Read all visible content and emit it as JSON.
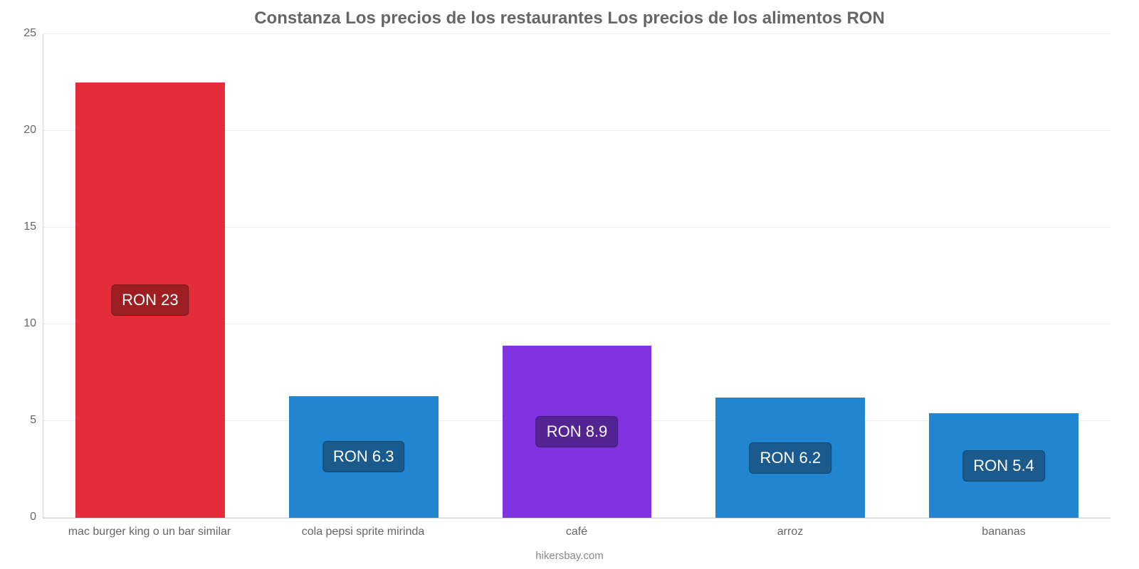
{
  "chart": {
    "type": "bar",
    "title": "Constanza Los precios de los restaurantes Los precios de los alimentos RON",
    "title_fontsize": 24,
    "title_color": "#666666",
    "ylim_min": 0,
    "ylim_max": 25,
    "ytick_step": 5,
    "yticks": [
      {
        "v": 0,
        "label": "0"
      },
      {
        "v": 5,
        "label": "5"
      },
      {
        "v": 10,
        "label": "10"
      },
      {
        "v": 15,
        "label": "15"
      },
      {
        "v": 20,
        "label": "20"
      },
      {
        "v": 25,
        "label": "25"
      }
    ],
    "label_fontsize": 16,
    "axis_color": "#d0d0d0",
    "grid_color": "#eeeeee",
    "background_color": "#ffffff",
    "bar_width": 0.7,
    "categories": [
      "mac burger king o un bar similar",
      "cola pepsi sprite mirinda",
      "café",
      "arroz",
      "bananas"
    ],
    "values": [
      22.5,
      6.3,
      8.9,
      6.2,
      5.4
    ],
    "value_labels": [
      "RON 23",
      "RON 6.3",
      "RON 8.9",
      "RON 6.2",
      "RON 5.4"
    ],
    "bar_colors": [
      "#e52d39",
      "#2185d0",
      "#8033e0",
      "#2185d0",
      "#2185d0"
    ],
    "badge_colors": [
      "#9d1f22",
      "#1a5a8c",
      "#552494",
      "#1a5a8c",
      "#1a5a8c"
    ],
    "badge_text_color": "#ffffff",
    "badge_fontsize": 22,
    "footer": "hikersbay.com",
    "footer_color": "#888888"
  }
}
